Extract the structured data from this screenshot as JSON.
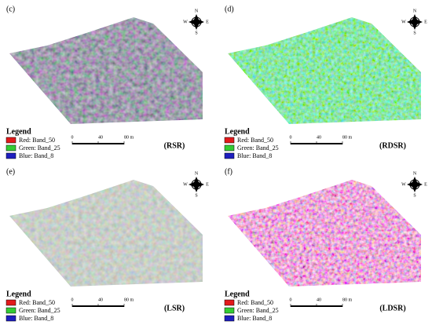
{
  "panels": [
    {
      "label": "(c)",
      "name": "(RSR)"
    },
    {
      "label": "(d)",
      "name": "(RDSR)"
    },
    {
      "label": "(e)",
      "name": "(LSR)"
    },
    {
      "label": "(f)",
      "name": "(LDSR)"
    }
  ],
  "legend": {
    "title": "Legend",
    "items": [
      "Red:   Band_50",
      "Green: Band_25",
      "Blue:   Band_8"
    ]
  },
  "scale": {
    "ticks": [
      "0",
      "40",
      "80 m"
    ]
  },
  "compass": {
    "n": "N",
    "e": "E",
    "s": "S",
    "w": "W"
  }
}
